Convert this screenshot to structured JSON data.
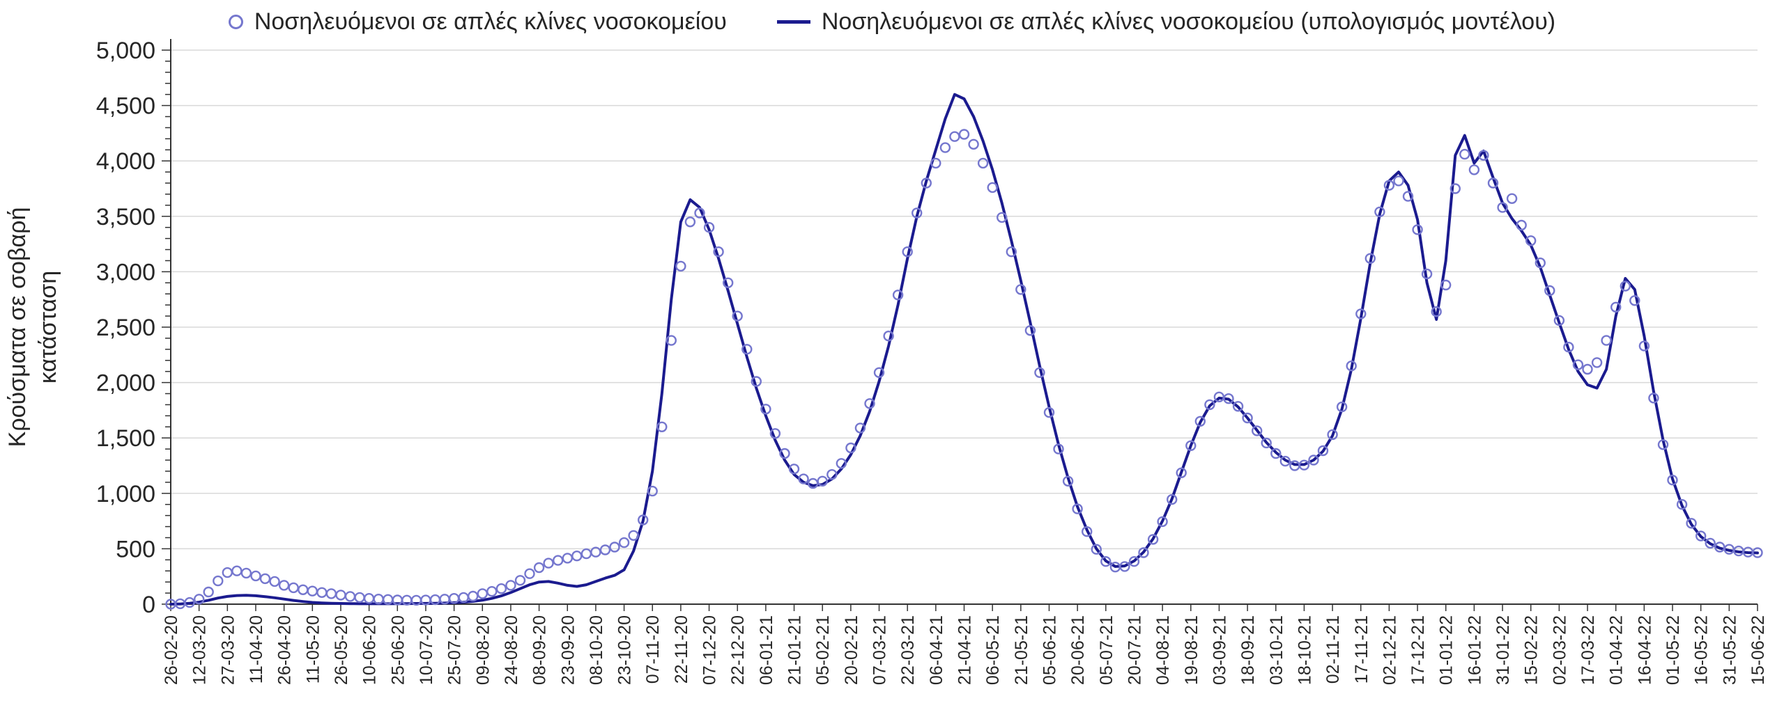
{
  "chart_data": {
    "type": "line",
    "title": "",
    "ylabel": "Κρούσματα σε σοβαρή κατάσταση",
    "ylabel_lines": [
      "Κρούσματα σε σοβαρή",
      "κατάσταση"
    ],
    "ylim": [
      0,
      5000
    ],
    "ytick_step": 500,
    "ytick_labels": [
      "0",
      "500",
      "1,000",
      "1,500",
      "2,000",
      "2,500",
      "3,000",
      "3,500",
      "4,000",
      "4,500",
      "5,000"
    ],
    "grid": "horizontal",
    "legend_position": "top",
    "xlim": [
      0,
      840
    ],
    "x_unit": "days since 26-02-20",
    "x_step": 5,
    "xtick_interval_days": 15,
    "xtick_labels": [
      "26-02-20",
      "12-03-20",
      "27-03-20",
      "11-04-20",
      "26-04-20",
      "11-05-20",
      "26-05-20",
      "10-06-20",
      "25-06-20",
      "10-07-20",
      "25-07-20",
      "09-08-20",
      "24-08-20",
      "08-09-20",
      "23-09-20",
      "08-10-20",
      "23-10-20",
      "07-11-20",
      "22-11-20",
      "07-12-20",
      "22-12-20",
      "06-01-21",
      "21-01-21",
      "05-02-21",
      "20-02-21",
      "07-03-21",
      "22-03-21",
      "06-04-21",
      "21-04-21",
      "06-05-21",
      "21-05-21",
      "05-06-21",
      "20-06-21",
      "05-07-21",
      "20-07-21",
      "04-08-21",
      "19-08-21",
      "03-09-21",
      "18-09-21",
      "03-10-21",
      "18-10-21",
      "02-11-21",
      "17-11-21",
      "02-12-21",
      "17-12-21",
      "01-01-22",
      "16-01-22",
      "31-01-22",
      "15-02-22",
      "02-03-22",
      "17-03-22",
      "01-04-22",
      "16-04-22",
      "01-05-22",
      "16-05-22",
      "31-05-22",
      "15-06-22"
    ],
    "series": [
      {
        "name": "Νοσηλευόμενοι σε απλές κλίνες νοσοκομείου",
        "style": "scatter",
        "marker": "open-circle",
        "color": "#7577CE",
        "values": [
          0,
          4,
          15,
          45,
          110,
          210,
          285,
          300,
          280,
          255,
          230,
          205,
          170,
          148,
          130,
          118,
          105,
          95,
          82,
          70,
          60,
          52,
          46,
          42,
          38,
          36,
          35,
          37,
          40,
          45,
          52,
          60,
          72,
          95,
          115,
          140,
          170,
          215,
          275,
          330,
          370,
          395,
          415,
          435,
          455,
          470,
          490,
          515,
          555,
          620,
          760,
          1020,
          1600,
          2380,
          3050,
          3450,
          3530,
          3400,
          3180,
          2900,
          2600,
          2300,
          2010,
          1760,
          1540,
          1360,
          1220,
          1130,
          1090,
          1110,
          1170,
          1270,
          1410,
          1590,
          1810,
          2090,
          2420,
          2790,
          3180,
          3530,
          3800,
          3980,
          4120,
          4220,
          4240,
          4150,
          3980,
          3760,
          3490,
          3180,
          2840,
          2470,
          2090,
          1730,
          1400,
          1110,
          860,
          655,
          495,
          385,
          335,
          340,
          385,
          465,
          585,
          745,
          945,
          1185,
          1430,
          1650,
          1800,
          1870,
          1855,
          1785,
          1680,
          1565,
          1455,
          1360,
          1290,
          1250,
          1255,
          1300,
          1385,
          1530,
          1780,
          2150,
          2620,
          3120,
          3540,
          3780,
          3820,
          3680,
          3380,
          2980,
          2640,
          2880,
          3750,
          4060,
          3920,
          4050,
          3800,
          3580,
          3660,
          3420,
          3280,
          3080,
          2830,
          2560,
          2320,
          2160,
          2120,
          2180,
          2380,
          2680,
          2870,
          2740,
          2330,
          1860,
          1440,
          1120,
          900,
          730,
          615,
          550,
          515,
          495,
          480,
          470,
          465
        ]
      },
      {
        "name": "Νοσηλευόμενοι σε απλές κλίνες νοσοκομείου (υπολογισμός μοντέλου)",
        "style": "line",
        "color": "#1B1B8F",
        "values": [
          0,
          2,
          8,
          18,
          35,
          55,
          70,
          78,
          80,
          76,
          68,
          58,
          46,
          34,
          24,
          16,
          11,
          8,
          6,
          5,
          4,
          4,
          4,
          4,
          5,
          5,
          6,
          7,
          8,
          10,
          13,
          18,
          25,
          36,
          52,
          75,
          105,
          140,
          175,
          200,
          205,
          190,
          170,
          160,
          175,
          205,
          235,
          260,
          310,
          480,
          750,
          1200,
          1900,
          2750,
          3450,
          3650,
          3580,
          3380,
          3120,
          2830,
          2530,
          2230,
          1950,
          1700,
          1480,
          1300,
          1170,
          1100,
          1070,
          1080,
          1130,
          1220,
          1350,
          1520,
          1740,
          2010,
          2330,
          2700,
          3120,
          3500,
          3820,
          4100,
          4380,
          4600,
          4560,
          4400,
          4180,
          3920,
          3620,
          3280,
          2920,
          2540,
          2150,
          1780,
          1440,
          1140,
          880,
          670,
          500,
          390,
          340,
          345,
          390,
          470,
          590,
          750,
          950,
          1190,
          1430,
          1640,
          1790,
          1860,
          1850,
          1780,
          1680,
          1570,
          1460,
          1370,
          1300,
          1260,
          1260,
          1300,
          1380,
          1520,
          1760,
          2120,
          2580,
          3080,
          3520,
          3820,
          3900,
          3780,
          3470,
          2900,
          2570,
          3100,
          4050,
          4230,
          3980,
          4090,
          3850,
          3620,
          3480,
          3370,
          3240,
          3040,
          2790,
          2540,
          2300,
          2100,
          1980,
          1950,
          2120,
          2600,
          2940,
          2840,
          2420,
          1920,
          1480,
          1130,
          890,
          720,
          610,
          545,
          505,
          485,
          472,
          465,
          462
        ]
      }
    ],
    "colors": {
      "grid": "#d9d9d9",
      "axis": "#333333",
      "text": "#262626",
      "scatter": "#7577CE",
      "model_line": "#1B1B8F"
    }
  }
}
